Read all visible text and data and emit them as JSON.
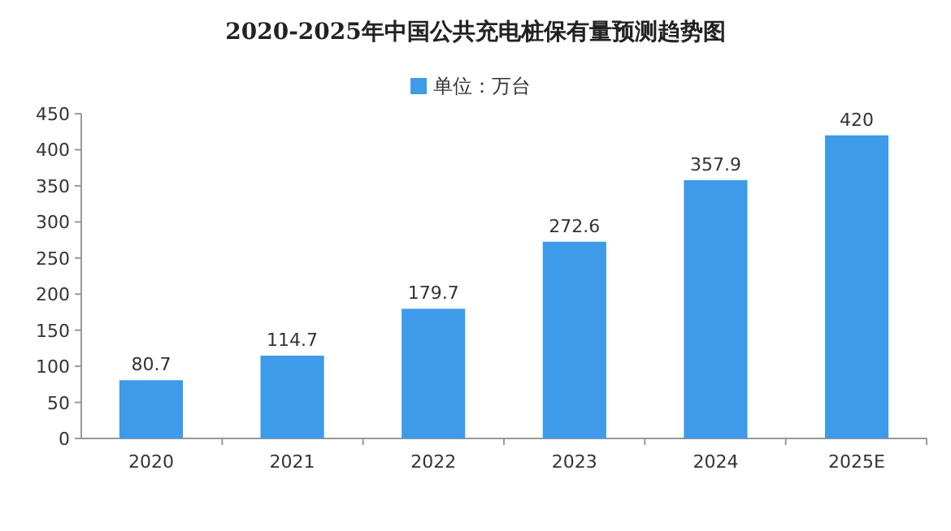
{
  "chart_data": {
    "type": "bar",
    "title": "2020-2025年中国公共充电桩保有量预测趋势图",
    "categories": [
      "2020",
      "2021",
      "2022",
      "2023",
      "2024",
      "2025E"
    ],
    "series": [
      {
        "name": "单位：万台",
        "color": "#3d9be9",
        "values": [
          80.7,
          114.7,
          179.7,
          272.6,
          357.9,
          420
        ]
      }
    ],
    "ylim": [
      0,
      450
    ],
    "yticks": [
      0,
      50,
      100,
      150,
      200,
      250,
      300,
      350,
      400,
      450
    ],
    "data_labels": true,
    "legend": "top",
    "grid": false
  }
}
